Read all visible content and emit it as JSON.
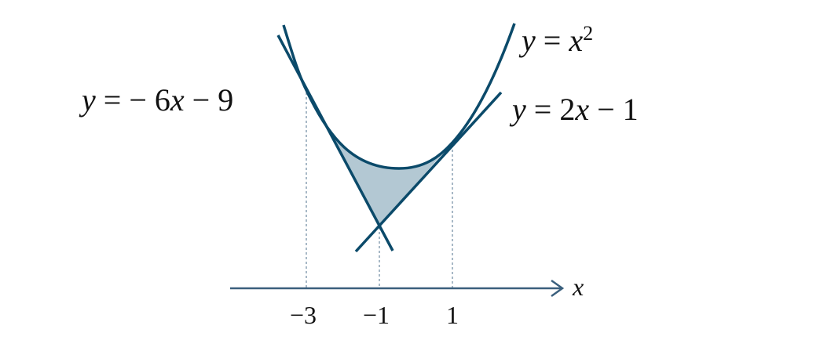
{
  "curves": {
    "parabola": {
      "label_lhs": "y",
      "label_eq": " = ",
      "label_var": "x",
      "label_exp": "2"
    },
    "tangent_left": {
      "label": "y = − 6x − 9",
      "lhs": "y",
      "rhs_a": " = − 6",
      "rhs_var": "x",
      "rhs_b": " − 9"
    },
    "tangent_right": {
      "label": "y = 2x − 1",
      "lhs": "y",
      "rhs_a": " = 2",
      "rhs_var": "x",
      "rhs_b": " − 1"
    }
  },
  "axis": {
    "label": "x",
    "ticks": [
      "−3",
      "−1",
      "1"
    ]
  },
  "colors": {
    "stroke": "#0b4a6a",
    "fill": "#b3c8d3",
    "dashed": "#8aa0b4",
    "axis": "#3a5f7d"
  }
}
